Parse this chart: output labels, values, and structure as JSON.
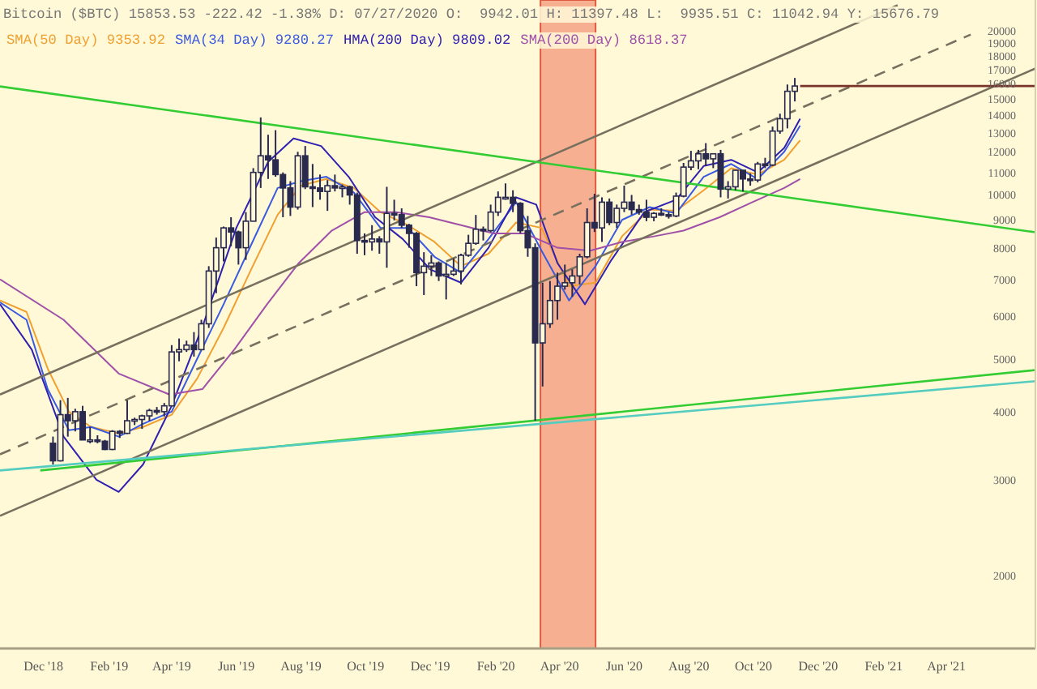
{
  "chart_data": {
    "type": "candlestick",
    "title": "Bitcoin ($BTC) 15853.53 -222.42 -1.38% D: 07/27/2020 O:  9942.01 H: 11397.48 L:  9935.51 C: 11042.94 Y: 15676.79",
    "color": "#2a2a4e",
    "x": [
      "2018-12-10",
      "2018-12-17",
      "2018-12-24",
      "2018-12-31",
      "2019-01-07",
      "2019-01-14",
      "2019-01-21",
      "2019-01-28",
      "2019-02-04",
      "2019-02-11",
      "2019-02-18",
      "2019-02-25",
      "2019-03-04",
      "2019-03-11",
      "2019-03-18",
      "2019-03-25",
      "2019-04-01",
      "2019-04-08",
      "2019-04-15",
      "2019-04-22",
      "2019-04-29",
      "2019-05-06",
      "2019-05-13",
      "2019-05-20",
      "2019-05-27",
      "2019-06-03",
      "2019-06-10",
      "2019-06-17",
      "2019-06-24",
      "2019-07-01",
      "2019-07-08",
      "2019-07-15",
      "2019-07-22",
      "2019-07-29",
      "2019-08-05",
      "2019-08-12",
      "2019-08-19",
      "2019-08-26",
      "2019-09-02",
      "2019-09-09",
      "2019-09-16",
      "2019-09-23",
      "2019-09-30",
      "2019-10-07",
      "2019-10-14",
      "2019-10-21",
      "2019-10-28",
      "2019-11-04",
      "2019-11-11",
      "2019-11-18",
      "2019-11-25",
      "2019-12-02",
      "2019-12-09",
      "2019-12-16",
      "2019-12-23",
      "2019-12-30",
      "2020-01-06",
      "2020-01-13",
      "2020-01-20",
      "2020-01-27",
      "2020-02-03",
      "2020-02-10",
      "2020-02-17",
      "2020-02-24",
      "2020-03-02",
      "2020-03-09",
      "2020-03-16",
      "2020-03-23",
      "2020-03-30",
      "2020-04-06",
      "2020-04-13",
      "2020-04-20",
      "2020-04-27",
      "2020-05-04",
      "2020-05-11",
      "2020-05-18",
      "2020-05-25",
      "2020-06-01",
      "2020-06-08",
      "2020-06-15",
      "2020-06-22",
      "2020-06-29",
      "2020-07-06",
      "2020-07-13",
      "2020-07-20",
      "2020-07-27",
      "2020-08-03",
      "2020-08-10",
      "2020-08-17",
      "2020-08-24",
      "2020-08-31",
      "2020-09-07",
      "2020-09-14",
      "2020-09-21",
      "2020-09-28",
      "2020-10-05",
      "2020-10-12",
      "2020-10-19",
      "2020-10-26",
      "2020-11-02",
      "2020-11-09"
    ],
    "ohlc": [
      [
        3500,
        3600,
        3200,
        3250
      ],
      [
        3250,
        4200,
        3240,
        3950
      ],
      [
        3950,
        4240,
        3600,
        3850
      ],
      [
        3850,
        4050,
        3680,
        4000
      ],
      [
        4000,
        4100,
        3550,
        3550
      ],
      [
        3550,
        3750,
        3500,
        3550
      ],
      [
        3550,
        3620,
        3500,
        3530
      ],
      [
        3530,
        3550,
        3400,
        3410
      ],
      [
        3410,
        3700,
        3400,
        3680
      ],
      [
        3680,
        3700,
        3580,
        3650
      ],
      [
        3650,
        4200,
        3640,
        3850
      ],
      [
        3850,
        3900,
        3780,
        3870
      ],
      [
        3870,
        3950,
        3720,
        3930
      ],
      [
        3930,
        4050,
        3850,
        4020
      ],
      [
        4020,
        4080,
        3950,
        4000
      ],
      [
        4000,
        4150,
        3920,
        4100
      ],
      [
        4100,
        5300,
        4100,
        5150
      ],
      [
        5150,
        5450,
        4950,
        5200
      ],
      [
        5200,
        5400,
        5150,
        5300
      ],
      [
        5300,
        5600,
        5050,
        5200
      ],
      [
        5200,
        5900,
        5200,
        5800
      ],
      [
        5800,
        7400,
        5700,
        7250
      ],
      [
        7250,
        8350,
        6600,
        8000
      ],
      [
        8000,
        8750,
        7550,
        8700
      ],
      [
        8700,
        9100,
        8050,
        8550
      ],
      [
        8550,
        8600,
        7450,
        8000
      ],
      [
        8000,
        9300,
        7600,
        8950
      ],
      [
        8950,
        11200,
        8950,
        11000
      ],
      [
        11000,
        13880,
        10300,
        11800
      ],
      [
        11800,
        12900,
        10700,
        11600
      ],
      [
        11600,
        13150,
        10800,
        10900
      ],
      [
        10900,
        11000,
        9100,
        10300
      ],
      [
        10300,
        10600,
        9150,
        9500
      ],
      [
        9500,
        12000,
        9400,
        11800
      ],
      [
        11800,
        12300,
        10250,
        10350
      ],
      [
        10350,
        11400,
        9500,
        10300
      ],
      [
        10300,
        10900,
        9800,
        10150
      ],
      [
        10150,
        10650,
        9350,
        10400
      ],
      [
        10400,
        10900,
        10150,
        10300
      ],
      [
        10300,
        10450,
        9900,
        10350
      ],
      [
        10350,
        10400,
        9600,
        10000
      ],
      [
        10000,
        10100,
        7800,
        8250
      ],
      [
        8250,
        8500,
        7750,
        8200
      ],
      [
        8200,
        8800,
        7900,
        8300
      ],
      [
        8300,
        8400,
        7800,
        8200
      ],
      [
        8200,
        10350,
        7350,
        9250
      ],
      [
        9250,
        9800,
        8980,
        9200
      ],
      [
        9200,
        9450,
        8700,
        8800
      ],
      [
        8800,
        8850,
        8000,
        8500
      ],
      [
        8500,
        8550,
        6800,
        7200
      ],
      [
        7200,
        7850,
        6550,
        7400
      ],
      [
        7400,
        7750,
        7100,
        7500
      ],
      [
        7500,
        7550,
        6950,
        7100
      ],
      [
        7100,
        7500,
        6430,
        7150
      ],
      [
        7150,
        7650,
        7100,
        7250
      ],
      [
        7250,
        7800,
        6850,
        7750
      ],
      [
        7750,
        8450,
        7700,
        8150
      ],
      [
        8150,
        9190,
        8100,
        8650
      ],
      [
        8650,
        8750,
        8250,
        8600
      ],
      [
        8600,
        9600,
        8550,
        9300
      ],
      [
        9300,
        10150,
        9150,
        9900
      ],
      [
        9900,
        10500,
        9800,
        9900
      ],
      [
        9900,
        10200,
        9300,
        9650
      ],
      [
        9650,
        9700,
        8500,
        8600
      ],
      [
        8600,
        9150,
        7700,
        8000
      ],
      [
        8000,
        8150,
        3850,
        5350
      ],
      [
        5350,
        6900,
        4450,
        5800
      ],
      [
        5800,
        6950,
        5700,
        6400
      ],
      [
        6400,
        7200,
        5900,
        6800
      ],
      [
        6800,
        7450,
        6700,
        6900
      ],
      [
        6900,
        7300,
        6500,
        7100
      ],
      [
        7100,
        7800,
        6850,
        7700
      ],
      [
        7700,
        9450,
        7650,
        8900
      ],
      [
        8900,
        10050,
        8550,
        8700
      ],
      [
        8700,
        9900,
        8200,
        9700
      ],
      [
        9700,
        9850,
        8800,
        8900
      ],
      [
        8900,
        9600,
        8700,
        9450
      ],
      [
        9450,
        10400,
        9300,
        9700
      ],
      [
        9700,
        10000,
        9200,
        9400
      ],
      [
        9400,
        9600,
        9200,
        9300
      ],
      [
        9300,
        9800,
        8950,
        9100
      ],
      [
        9100,
        9300,
        8950,
        9250
      ],
      [
        9250,
        9450,
        9150,
        9200
      ],
      [
        9200,
        9300,
        9050,
        9150
      ],
      [
        9150,
        10100,
        9100,
        9950
      ],
      [
        9950,
        11450,
        9900,
        11250
      ],
      [
        11250,
        12050,
        11100,
        11550
      ],
      [
        11550,
        12100,
        11150,
        11900
      ],
      [
        11900,
        12450,
        11300,
        11650
      ],
      [
        11650,
        11900,
        11200,
        11900
      ],
      [
        11900,
        12100,
        9900,
        10250
      ],
      [
        10250,
        10600,
        9850,
        10350
      ],
      [
        10350,
        11100,
        10200,
        11100
      ],
      [
        11100,
        11100,
        10150,
        10700
      ],
      [
        10700,
        10950,
        10400,
        10650
      ],
      [
        10650,
        11500,
        10550,
        11400
      ],
      [
        11400,
        11700,
        11200,
        11350
      ],
      [
        11350,
        13350,
        11300,
        13100
      ],
      [
        13100,
        14100,
        12950,
        13800
      ],
      [
        13800,
        15950,
        13250,
        15500
      ],
      [
        15500,
        16400,
        14850,
        15850
      ]
    ],
    "series": [
      {
        "type": "line",
        "name": "SMA(50 Day) 9353.92",
        "color": "#f0a030",
        "x": [
          "2018-10-21",
          "2018-11-15",
          "2018-12-05",
          "2018-12-25",
          "2019-01-15",
          "2019-02-10",
          "2019-03-05",
          "2019-04-01",
          "2019-04-25",
          "2019-05-20",
          "2019-06-15",
          "2019-07-10",
          "2019-08-01",
          "2019-08-25",
          "2019-09-20",
          "2019-10-15",
          "2019-11-10",
          "2019-12-05",
          "2019-12-30",
          "2020-01-25",
          "2020-02-20",
          "2020-03-15",
          "2020-04-10",
          "2020-05-05",
          "2020-05-30",
          "2020-06-25",
          "2020-07-20",
          "2020-08-15",
          "2020-09-10",
          "2020-10-05",
          "2020-10-30",
          "2020-11-14"
        ],
        "values": [
          6400,
          6100,
          4800,
          4000,
          3750,
          3650,
          3750,
          3950,
          4600,
          5700,
          7300,
          9200,
          10400,
          10700,
          10300,
          9300,
          8800,
          8200,
          7400,
          7800,
          8900,
          8700,
          6800,
          6900,
          8400,
          9400,
          9350,
          10200,
          11200,
          10900,
          11600,
          12600
        ]
      },
      {
        "type": "line",
        "name": "SMA(34 Day) 9280.27",
        "color": "#3a5ae0",
        "x": [
          "2018-10-21",
          "2018-11-15",
          "2018-12-05",
          "2018-12-25",
          "2019-01-15",
          "2019-02-10",
          "2019-03-05",
          "2019-04-01",
          "2019-04-25",
          "2019-05-20",
          "2019-06-15",
          "2019-07-10",
          "2019-08-01",
          "2019-08-25",
          "2019-09-20",
          "2019-10-15",
          "2019-11-10",
          "2019-12-05",
          "2019-12-30",
          "2020-01-25",
          "2020-02-20",
          "2020-03-15",
          "2020-04-10",
          "2020-05-05",
          "2020-05-30",
          "2020-06-25",
          "2020-07-20",
          "2020-08-15",
          "2020-09-10",
          "2020-10-05",
          "2020-10-30",
          "2020-11-14"
        ],
        "values": [
          6350,
          5900,
          4400,
          3700,
          3750,
          3600,
          3800,
          4000,
          5000,
          6300,
          8100,
          10300,
          10600,
          10800,
          10100,
          8700,
          8700,
          7700,
          7200,
          8300,
          9700,
          7900,
          6400,
          7400,
          9000,
          9500,
          9250,
          10800,
          11400,
          10700,
          12000,
          13400
        ]
      },
      {
        "type": "line",
        "name": "HMA(200 Day) 9809.02",
        "color": "#3020b0",
        "x": [
          "2018-10-21",
          "2018-11-20",
          "2018-12-20",
          "2019-01-20",
          "2019-02-10",
          "2019-03-05",
          "2019-04-01",
          "2019-05-01",
          "2019-06-01",
          "2019-07-01",
          "2019-07-25",
          "2019-08-20",
          "2019-09-15",
          "2019-10-10",
          "2019-11-05",
          "2019-12-01",
          "2019-12-30",
          "2020-01-25",
          "2020-02-20",
          "2020-03-10",
          "2020-03-30",
          "2020-04-25",
          "2020-05-20",
          "2020-06-20",
          "2020-07-20",
          "2020-08-15",
          "2020-09-10",
          "2020-10-05",
          "2020-10-30",
          "2020-11-14"
        ],
        "values": [
          6300,
          5200,
          3600,
          3000,
          2850,
          3200,
          4100,
          5800,
          8700,
          11500,
          12700,
          12300,
          10800,
          9100,
          8300,
          7300,
          6900,
          8000,
          9900,
          9600,
          7500,
          6300,
          7600,
          9300,
          9800,
          11300,
          11600,
          11000,
          12200,
          13800
        ]
      },
      {
        "type": "line",
        "name": "SMA(200 Day) 8618.37",
        "color": "#a050a8",
        "x": [
          "2018-10-21",
          "2018-12-20",
          "2019-02-10",
          "2019-03-30",
          "2019-04-30",
          "2019-05-30",
          "2019-06-30",
          "2019-07-30",
          "2019-08-30",
          "2019-09-30",
          "2019-10-30",
          "2019-11-30",
          "2019-12-30",
          "2020-01-30",
          "2020-02-28",
          "2020-03-30",
          "2020-04-30",
          "2020-05-30",
          "2020-06-30",
          "2020-07-27",
          "2020-08-30",
          "2020-09-30",
          "2020-10-30",
          "2020-11-14"
        ],
        "values": [
          7000,
          5900,
          4700,
          4300,
          4400,
          5200,
          6300,
          7500,
          8600,
          9300,
          9300,
          9100,
          8800,
          8500,
          8500,
          8000,
          7900,
          8200,
          8400,
          8600,
          9100,
          9700,
          10300,
          10700
        ]
      },
      {
        "type": "line",
        "color": "#78705e",
        "x": [
          "2018-10-21",
          "2021-02-14"
        ],
        "values": [
          4300,
          22300
        ]
      },
      {
        "type": "line",
        "color": "#78705e",
        "line_style": "dashed",
        "x": [
          "2018-10-21",
          "2021-04-24"
        ],
        "values": [
          3340,
          19700
        ]
      },
      {
        "type": "line",
        "color": "#78705e",
        "x": [
          "2018-10-21",
          "2021-06-24"
        ],
        "values": [
          2575,
          17070
        ]
      },
      {
        "type": "line",
        "color": "#33cc33",
        "x": [
          "2018-10-21",
          "2021-06-24"
        ],
        "values": [
          15820,
          8540
        ]
      },
      {
        "type": "line",
        "color": "#33cc33",
        "x": [
          "2018-11-28",
          "2021-06-24"
        ],
        "values": [
          3120,
          4770
        ]
      },
      {
        "type": "line",
        "color": "#55ccc0",
        "x": [
          "2018-10-21",
          "2021-06-24"
        ],
        "values": [
          3120,
          4550
        ]
      },
      {
        "type": "line",
        "color": "#7a3328",
        "x": [
          "2020-11-14",
          "2021-06-24"
        ],
        "values": [
          15850,
          15850
        ]
      }
    ],
    "bands": [
      {
        "axis": "x",
        "from": "2020-03-14",
        "to": "2020-05-05",
        "color": "#f5a385"
      }
    ],
    "log": true,
    "ylim": [
      1470,
      22800
    ],
    "yticks": [
      2000,
      3000,
      4000,
      5000,
      6000,
      7000,
      8000,
      9000,
      10000,
      11000,
      12000,
      13000,
      14000,
      15000,
      16000,
      17000,
      18000,
      19000,
      20000
    ],
    "xlim": [
      "2018-10-21",
      "2021-06-24"
    ],
    "xticks": [
      {
        "value": "2018-12",
        "label": "Dec '18"
      },
      {
        "value": "2019-02",
        "label": "Feb '19"
      },
      {
        "value": "2019-04",
        "label": "Apr '19"
      },
      {
        "value": "2019-06",
        "label": "Jun '19"
      },
      {
        "value": "2019-08",
        "label": "Aug '19"
      },
      {
        "value": "2019-10",
        "label": "Oct '19"
      },
      {
        "value": "2019-12",
        "label": "Dec '19"
      },
      {
        "value": "2020-02",
        "label": "Feb '20"
      },
      {
        "value": "2020-04",
        "label": "Apr '20"
      },
      {
        "value": "2020-06",
        "label": "Jun '20"
      },
      {
        "value": "2020-08",
        "label": "Aug '20"
      },
      {
        "value": "2020-10",
        "label": "Oct '20"
      },
      {
        "value": "2020-12",
        "label": "Dec '20"
      },
      {
        "value": "2021-02",
        "label": "Feb '21"
      },
      {
        "value": "2021-04",
        "label": "Apr '21"
      }
    ],
    "grid": false,
    "legend": "top left"
  }
}
